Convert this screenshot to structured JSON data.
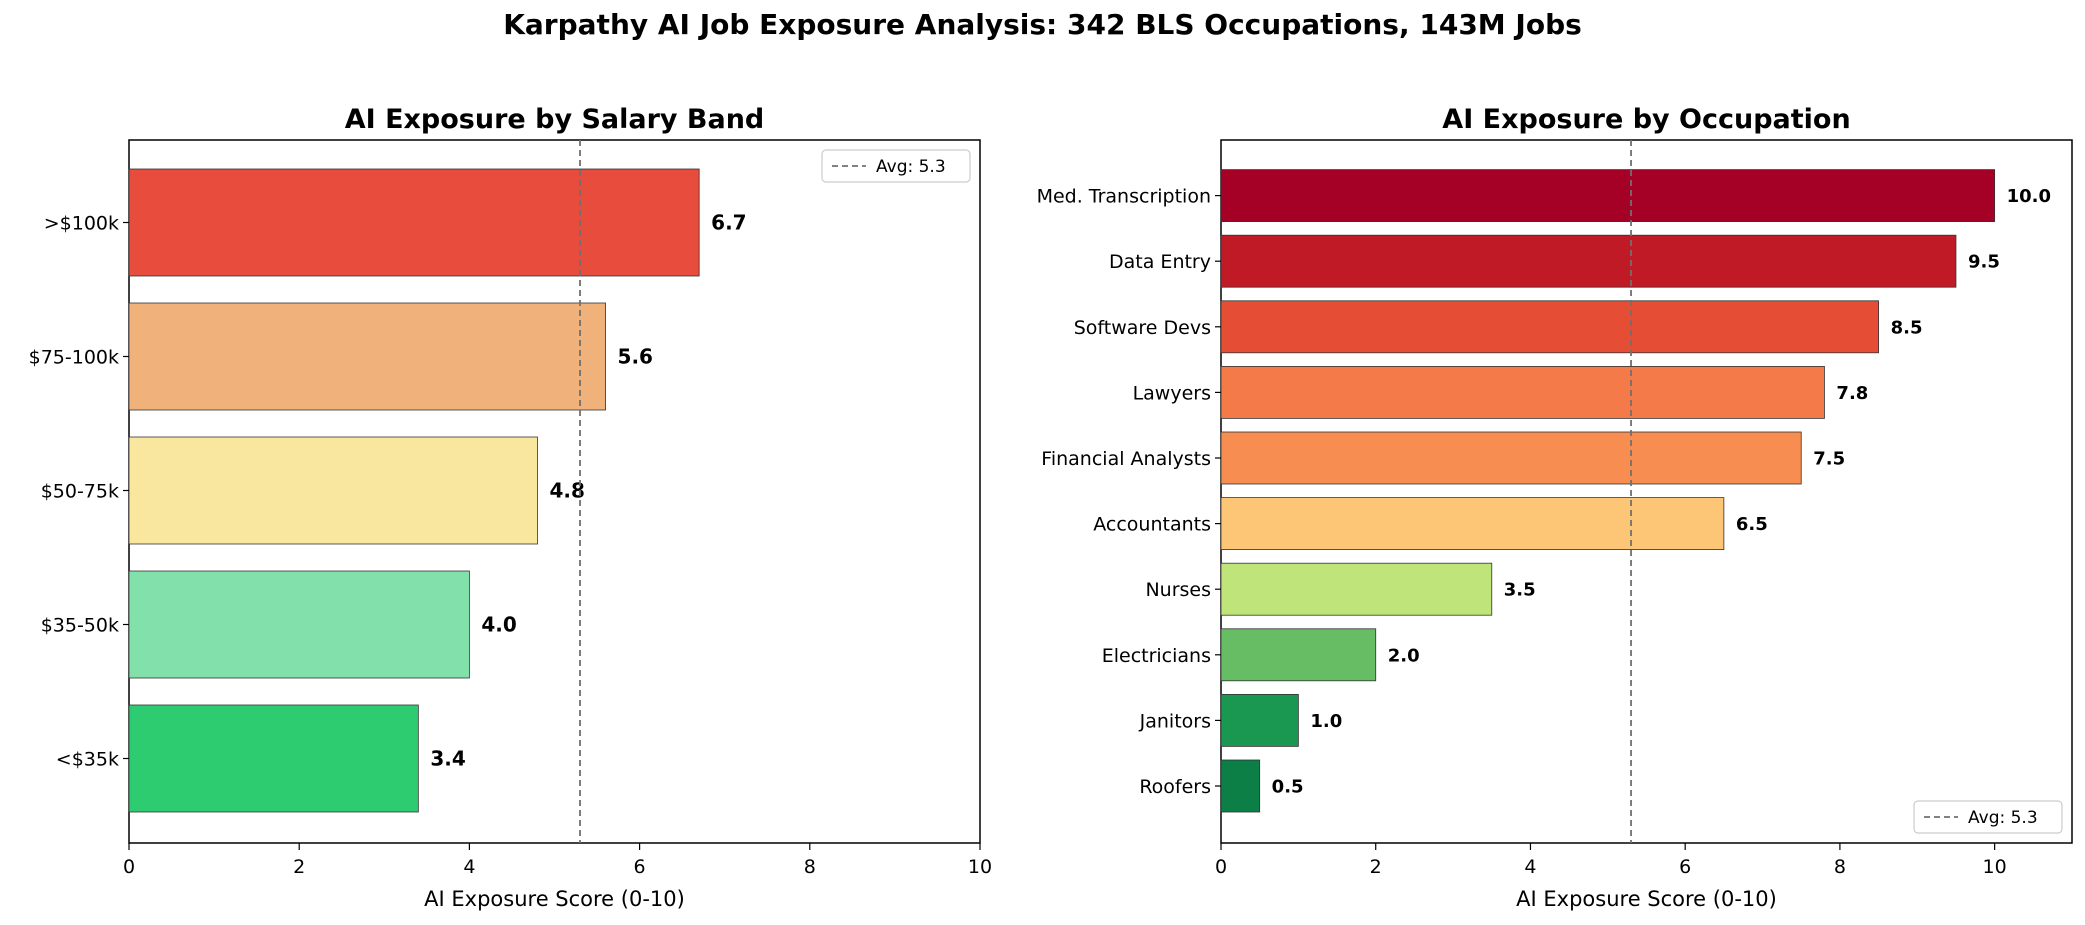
{
  "suptitle": "Karpathy AI Job Exposure Analysis: 342 BLS Occupations, 143M Jobs",
  "chart_data": [
    {
      "type": "bar",
      "orientation": "horizontal",
      "title": "AI Exposure by Salary Band",
      "xlabel": "AI Exposure Score (0-10)",
      "ylabel": "",
      "xlim": [
        0,
        10
      ],
      "xticks": [
        0,
        2,
        4,
        6,
        8,
        10
      ],
      "categories": [
        "<$35k",
        "$35-50k",
        "$50-75k",
        "$75-100k",
        ">$100k"
      ],
      "values": [
        3.4,
        4.0,
        4.8,
        5.6,
        6.7
      ],
      "value_labels": [
        "3.4",
        "4.0",
        "4.8",
        "5.6",
        "6.7"
      ],
      "colors": [
        "#2ecc71",
        "#82e0aa",
        "#f9e79f",
        "#f0b27a",
        "#e74c3c"
      ],
      "reference_line": {
        "value": 5.3,
        "label": "Avg: 5.3",
        "style": "dashed",
        "color": "#707070"
      },
      "legend_position": "upper-right"
    },
    {
      "type": "bar",
      "orientation": "horizontal",
      "title": "AI Exposure by Occupation",
      "xlabel": "AI Exposure Score (0-10)",
      "ylabel": "",
      "xlim": [
        0,
        11
      ],
      "xticks": [
        0,
        2,
        4,
        6,
        8,
        10
      ],
      "categories": [
        "Roofers",
        "Janitors",
        "Electricians",
        "Nurses",
        "Accountants",
        "Financial Analysts",
        "Lawyers",
        "Software Devs",
        "Data Entry",
        "Med. Transcription"
      ],
      "values": [
        0.5,
        1.0,
        2.0,
        3.5,
        6.5,
        7.5,
        7.8,
        8.5,
        9.5,
        10.0
      ],
      "value_labels": [
        "0.5",
        "1.0",
        "2.0",
        "3.5",
        "6.5",
        "7.5",
        "7.8",
        "8.5",
        "9.5",
        "10.0"
      ],
      "colors": [
        "#0b7f45",
        "#1a9750",
        "#66bd63",
        "#bfe57a",
        "#fdc676",
        "#f88d51",
        "#f57a4a",
        "#e54d35",
        "#c01a27",
        "#a50026"
      ],
      "reference_line": {
        "value": 5.3,
        "label": "Avg: 5.3",
        "style": "dashed",
        "color": "#707070"
      },
      "legend_position": "lower-right"
    }
  ]
}
